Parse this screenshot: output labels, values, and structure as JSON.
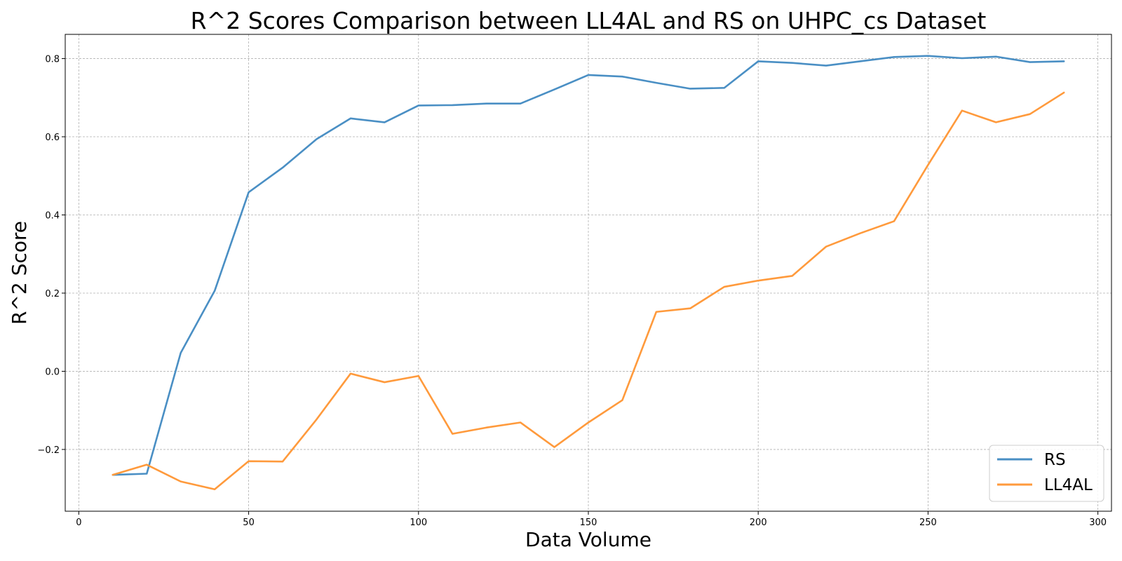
{
  "chart_data": {
    "type": "line",
    "title": "R^2 Scores Comparison between LL4AL and RS on UHPC_cs Dataset",
    "xlabel": "Data Volume",
    "ylabel": "R^2 Score",
    "xlim": [
      -4,
      304
    ],
    "ylim": [
      -0.358,
      0.862
    ],
    "xticks": [
      0,
      50,
      100,
      150,
      200,
      250,
      300
    ],
    "yticks": [
      -0.2,
      0.0,
      0.2,
      0.4,
      0.6,
      0.8
    ],
    "xtick_labels": [
      "0",
      "50",
      "100",
      "150",
      "200",
      "250",
      "300"
    ],
    "ytick_labels": [
      "−0.2",
      "0.0",
      "0.2",
      "0.4",
      "0.6",
      "0.8"
    ],
    "grid": true,
    "legend_position": "lower-right",
    "x": [
      10,
      20,
      30,
      40,
      50,
      60,
      70,
      80,
      90,
      100,
      110,
      120,
      130,
      140,
      150,
      160,
      170,
      180,
      190,
      200,
      210,
      220,
      230,
      240,
      250,
      260,
      270,
      280,
      290
    ],
    "series": [
      {
        "name": "RS",
        "color": "#4a8fc4",
        "values": [
          -0.265,
          -0.262,
          0.047,
          0.206,
          0.458,
          0.521,
          0.594,
          0.647,
          0.637,
          0.68,
          0.681,
          0.685,
          0.685,
          0.721,
          0.758,
          0.754,
          0.738,
          0.723,
          0.725,
          0.793,
          0.789,
          0.782,
          0.793,
          0.804,
          0.807,
          0.801,
          0.805,
          0.791,
          0.793
        ]
      },
      {
        "name": "LL4AL",
        "color": "#ff9a3c",
        "values": [
          -0.265,
          -0.239,
          -0.282,
          -0.302,
          -0.23,
          -0.231,
          -0.123,
          -0.006,
          -0.028,
          -0.012,
          -0.16,
          -0.144,
          -0.131,
          -0.194,
          -0.131,
          -0.074,
          0.152,
          0.161,
          0.216,
          0.232,
          0.244,
          0.319,
          0.353,
          0.384,
          0.528,
          0.667,
          0.637,
          0.658,
          0.713
        ]
      }
    ]
  }
}
